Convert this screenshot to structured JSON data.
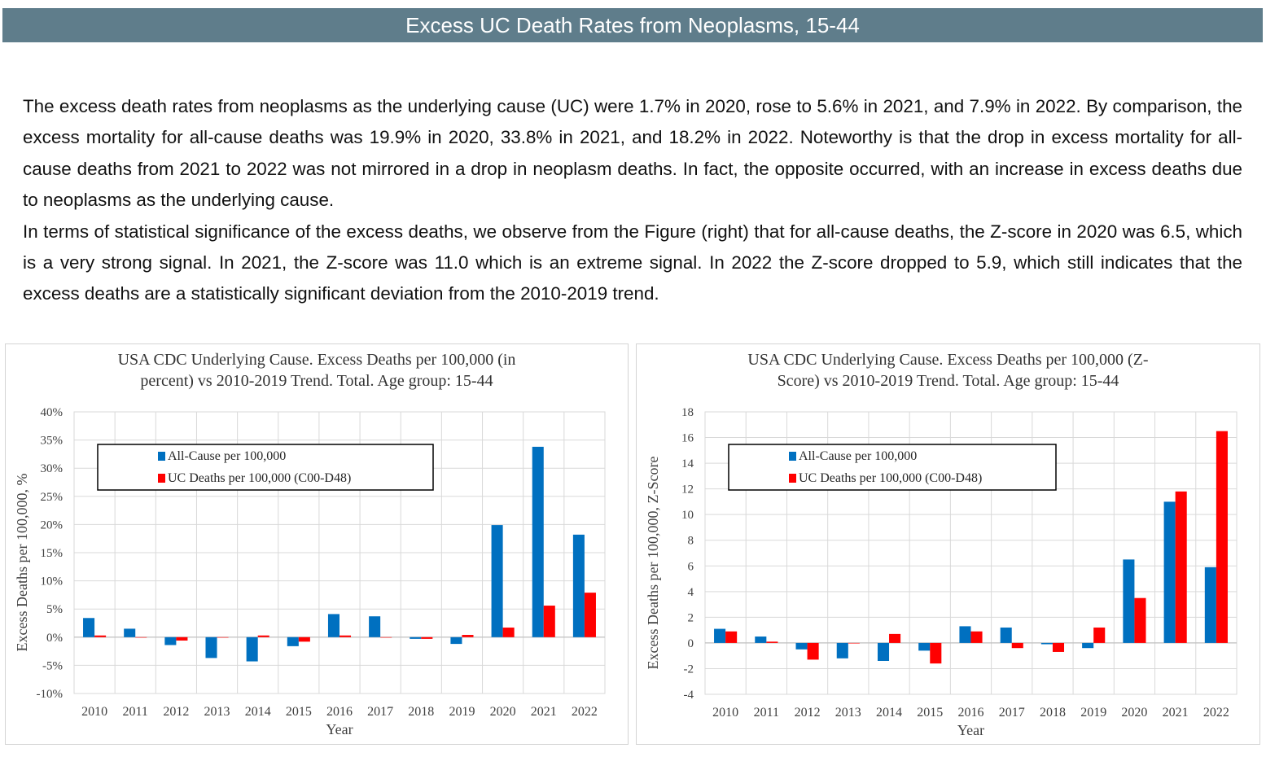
{
  "header": {
    "title": "Excess UC Death Rates from Neoplasms, 15-44"
  },
  "body": {
    "paragraph1": "The excess death rates from neoplasms as the underlying cause (UC) were 1.7% in 2020, rose to 5.6% in 2021, and 7.9% in 2022. By comparison, the excess mortality for all-cause deaths was 19.9% in 2020, 33.8% in 2021, and 18.2% in 2022. Noteworthy is that the drop in excess mortality for all-cause deaths from 2021 to 2022 was not mirrored in a drop in neoplasm deaths. In fact, the opposite occurred, with an increase in excess deaths due to neoplasms as the underlying cause.",
    "paragraph2": "In terms of statistical significance of the excess deaths, we observe from the Figure (right) that for all-cause deaths, the Z-score in 2020 was 6.5, which is a very strong signal. In 2021, the Z-score was 11.0 which is an extreme signal. In 2022 the Z-score dropped to 5.9, which still indicates that the excess deaths are a statistically significant deviation from the 2010-2019 trend."
  },
  "colors": {
    "header_bg": "#5f7d8b",
    "all_cause": "#0070c0",
    "uc_deaths": "#ff0000"
  },
  "chart_data": [
    {
      "type": "bar",
      "title_line1": "USA CDC Underlying Cause. Excess Deaths per 100,000 (in",
      "title_line2": "percent) vs 2010-2019 Trend. Total. Age group: 15-44",
      "xlabel": "Year",
      "ylabel": "Excess Deaths per 100,000, %",
      "ylim": [
        -10,
        40
      ],
      "yticks": [
        40,
        35,
        30,
        25,
        20,
        15,
        10,
        5,
        0,
        -5,
        -10
      ],
      "ytick_suffix": "%",
      "categories": [
        "2010",
        "2011",
        "2012",
        "2013",
        "2014",
        "2015",
        "2016",
        "2017",
        "2018",
        "2019",
        "2020",
        "2021",
        "2022"
      ],
      "series": [
        {
          "name": "All-Cause per 100,000",
          "color": "#0070c0",
          "values": [
            3.4,
            1.5,
            -1.4,
            -3.7,
            -4.3,
            -1.6,
            4.1,
            3.7,
            -0.3,
            -1.2,
            19.9,
            33.8,
            18.2
          ]
        },
        {
          "name": "UC Deaths per 100,000 (C00-D48)",
          "color": "#ff0000",
          "values": [
            0.3,
            0.0,
            -0.6,
            0.0,
            0.3,
            -0.8,
            0.3,
            0.0,
            -0.3,
            0.4,
            1.7,
            5.6,
            7.9
          ]
        }
      ],
      "legend": "top-left",
      "grid": true
    },
    {
      "type": "bar",
      "title_line1": "USA CDC Underlying Cause. Excess Deaths per 100,000 (Z-",
      "title_line2": "Score) vs 2010-2019 Trend. Total. Age group: 15-44",
      "xlabel": "Year",
      "ylabel": "Excess Deaths per 100,000, Z-Score",
      "ylim": [
        -4,
        18
      ],
      "yticks": [
        18,
        16,
        14,
        12,
        10,
        8,
        6,
        4,
        2,
        0,
        -2,
        -4
      ],
      "ytick_suffix": "",
      "categories": [
        "2010",
        "2011",
        "2012",
        "2013",
        "2014",
        "2015",
        "2016",
        "2017",
        "2018",
        "2019",
        "2020",
        "2021",
        "2022"
      ],
      "series": [
        {
          "name": "All-Cause per 100,000",
          "color": "#0070c0",
          "values": [
            1.1,
            0.5,
            -0.5,
            -1.2,
            -1.4,
            -0.6,
            1.3,
            1.2,
            -0.1,
            -0.4,
            6.5,
            11.0,
            5.9
          ]
        },
        {
          "name": "UC Deaths per 100,000 (C00-D48)",
          "color": "#ff0000",
          "values": [
            0.9,
            0.1,
            -1.3,
            0.0,
            0.7,
            -1.6,
            0.9,
            -0.4,
            -0.7,
            1.2,
            3.5,
            11.8,
            16.5
          ]
        }
      ],
      "legend": "top-left",
      "grid": true
    }
  ]
}
